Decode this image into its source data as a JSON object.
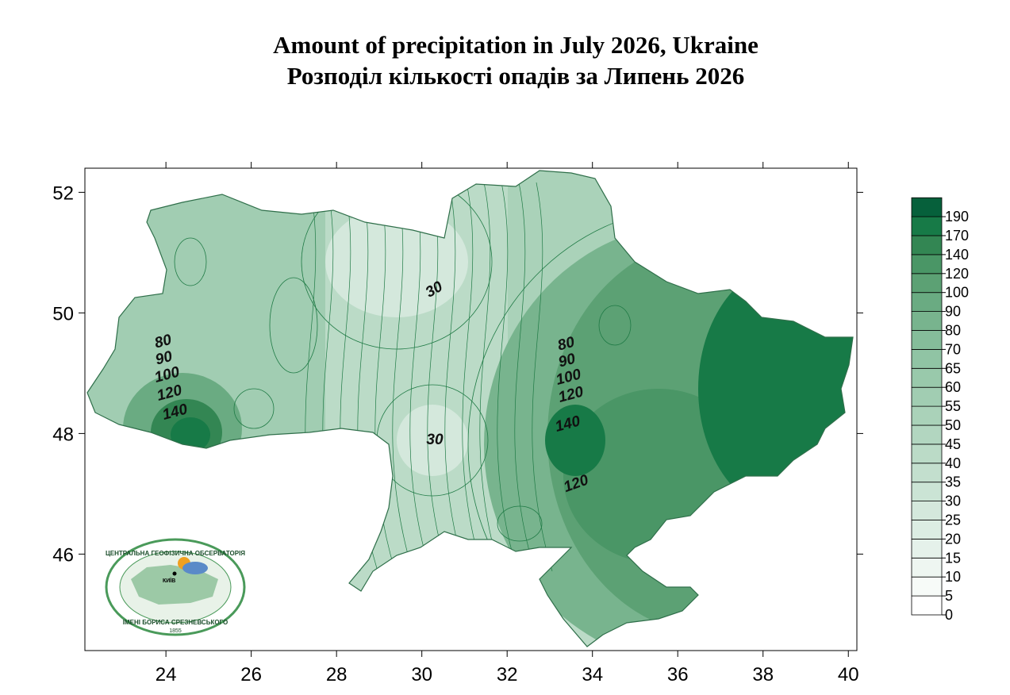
{
  "title": [
    "Amount of precipitation in July 2026, Ukraine",
    "Розподіл кількості опадів за Липень 2026"
  ],
  "map": {
    "xlim": [
      22.1,
      40.2
    ],
    "ylim": [
      44.4,
      52.4
    ],
    "xticks": [
      24,
      26,
      28,
      30,
      32,
      34,
      36,
      38,
      40
    ],
    "yticks": [
      46,
      48,
      50,
      52
    ],
    "contour_labels": [
      30,
      30,
      80,
      90,
      100,
      120,
      140,
      80,
      90,
      100,
      120,
      140,
      120
    ]
  },
  "colorbar": {
    "levels": [
      0,
      5,
      10,
      15,
      20,
      25,
      30,
      35,
      40,
      45,
      50,
      55,
      60,
      65,
      70,
      80,
      90,
      100,
      120,
      140,
      170,
      190
    ],
    "colors": [
      "#ffffff",
      "#f7fbf8",
      "#eef6f1",
      "#e5f1ea",
      "#dcede3",
      "#d4e8dc",
      "#cbe4d5",
      "#c3dfce",
      "#bbdbc7",
      "#b2d6c0",
      "#aad2b9",
      "#a1cdb2",
      "#99c9ab",
      "#90c4a4",
      "#85bd9a",
      "#78b48e",
      "#6aab82",
      "#5ca174",
      "#4a9666",
      "#338653",
      "#177a47",
      "#06603b"
    ]
  },
  "logo": {
    "top": "ЦЕНТРАЛЬНА ГЕОФІЗИЧНА ОБСЕРВАТОРІЯ",
    "bottom": "ІМЕНІ БОРИСА СРЕЗНЕВСЬКОГО",
    "year": "1855",
    "city": "КИЇВ"
  }
}
